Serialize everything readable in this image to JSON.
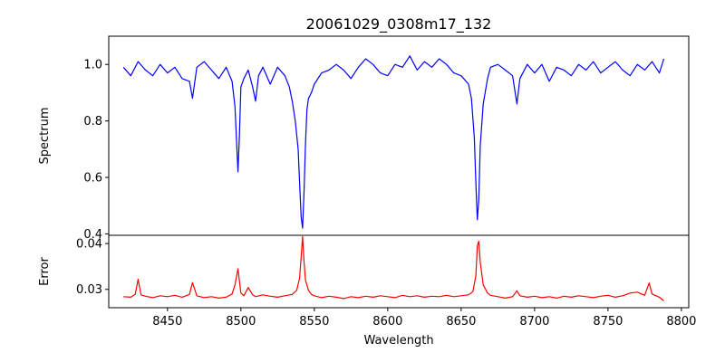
{
  "chart_data": {
    "type": "line",
    "title": "20061029_0308m17_132",
    "xlabel": "Wavelength",
    "x_ticks": [
      8450,
      8500,
      8550,
      8600,
      8650,
      8700,
      8750,
      8800
    ],
    "xlim": [
      8410,
      8805
    ],
    "grid": false,
    "panels": [
      {
        "ylabel": "Spectrum",
        "ylim": [
          0.395,
          1.1
        ],
        "y_ticks": [
          0.4,
          0.6,
          0.8,
          1.0
        ],
        "y_tick_labels": [
          "0.4",
          "0.6",
          "0.8",
          "1.0"
        ],
        "series": [
          {
            "color": "#0000ff",
            "x": [
              8420,
              8425,
              8430,
              8435,
              8440,
              8445,
              8450,
              8455,
              8460,
              8465,
              8467,
              8470,
              8475,
              8480,
              8485,
              8490,
              8494,
              8496,
              8497,
              8498,
              8499,
              8500,
              8502,
              8505,
              8508,
              8510,
              8512,
              8515,
              8520,
              8525,
              8530,
              8533,
              8535,
              8537,
              8539,
              8540,
              8541,
              8542,
              8543,
              8544,
              8545,
              8546,
              8548,
              8550,
              8555,
              8560,
              8565,
              8570,
              8575,
              8580,
              8585,
              8590,
              8595,
              8600,
              8605,
              8610,
              8615,
              8620,
              8625,
              8630,
              8635,
              8640,
              8645,
              8650,
              8655,
              8657,
              8659,
              8660,
              8661,
              8662,
              8663,
              8665,
              8668,
              8670,
              8675,
              8680,
              8685,
              8688,
              8690,
              8695,
              8700,
              8705,
              8710,
              8715,
              8720,
              8725,
              8730,
              8735,
              8740,
              8745,
              8750,
              8755,
              8760,
              8765,
              8770,
              8775,
              8780,
              8785,
              8788
            ],
            "y": [
              0.99,
              0.96,
              1.01,
              0.98,
              0.96,
              1.0,
              0.97,
              0.99,
              0.95,
              0.94,
              0.88,
              0.99,
              1.01,
              0.98,
              0.95,
              0.99,
              0.94,
              0.85,
              0.73,
              0.62,
              0.75,
              0.92,
              0.95,
              0.98,
              0.92,
              0.87,
              0.96,
              0.99,
              0.93,
              0.99,
              0.96,
              0.92,
              0.87,
              0.8,
              0.7,
              0.58,
              0.46,
              0.42,
              0.55,
              0.72,
              0.84,
              0.88,
              0.9,
              0.93,
              0.97,
              0.98,
              1.0,
              0.98,
              0.95,
              0.99,
              1.02,
              1.0,
              0.97,
              0.96,
              1.0,
              0.99,
              1.03,
              0.98,
              1.01,
              0.99,
              1.02,
              1.0,
              0.97,
              0.96,
              0.93,
              0.88,
              0.74,
              0.58,
              0.45,
              0.52,
              0.71,
              0.86,
              0.95,
              0.99,
              1.0,
              0.98,
              0.96,
              0.86,
              0.95,
              1.0,
              0.97,
              1.0,
              0.94,
              0.99,
              0.98,
              0.96,
              1.0,
              0.98,
              1.01,
              0.97,
              0.99,
              1.01,
              0.98,
              0.96,
              1.0,
              0.98,
              1.01,
              0.97,
              1.02
            ]
          }
        ]
      },
      {
        "ylabel": "Error",
        "ylim": [
          0.026,
          0.0418
        ],
        "y_ticks": [
          0.03,
          0.04
        ],
        "y_tick_labels": [
          "0.03",
          "0.04"
        ],
        "series": [
          {
            "color": "#ff0000",
            "x": [
              8420,
              8425,
              8428,
              8430,
              8432,
              8435,
              8440,
              8445,
              8450,
              8455,
              8460,
              8465,
              8467,
              8470,
              8475,
              8480,
              8485,
              8490,
              8494,
              8496,
              8498,
              8500,
              8502,
              8505,
              8508,
              8510,
              8515,
              8520,
              8525,
              8530,
              8535,
              8538,
              8540,
              8541,
              8542,
              8543,
              8544,
              8546,
              8548,
              8550,
              8555,
              8560,
              8565,
              8570,
              8575,
              8580,
              8585,
              8590,
              8595,
              8600,
              8605,
              8610,
              8615,
              8620,
              8625,
              8630,
              8635,
              8640,
              8645,
              8650,
              8655,
              8658,
              8660,
              8661,
              8662,
              8663,
              8665,
              8668,
              8670,
              8675,
              8680,
              8685,
              8688,
              8690,
              8695,
              8700,
              8705,
              8710,
              8715,
              8720,
              8725,
              8730,
              8735,
              8740,
              8745,
              8750,
              8755,
              8760,
              8765,
              8770,
              8775,
              8778,
              8780,
              8785,
              8788
            ],
            "y": [
              0.0284,
              0.0283,
              0.0289,
              0.0322,
              0.0288,
              0.0285,
              0.0282,
              0.0286,
              0.0284,
              0.0287,
              0.0283,
              0.0289,
              0.0315,
              0.0286,
              0.0282,
              0.0284,
              0.0281,
              0.0283,
              0.029,
              0.031,
              0.0345,
              0.0292,
              0.0286,
              0.0304,
              0.0288,
              0.0284,
              0.0288,
              0.0285,
              0.0283,
              0.0286,
              0.0289,
              0.0298,
              0.0325,
              0.037,
              0.0415,
              0.036,
              0.032,
              0.0298,
              0.0289,
              0.0286,
              0.0282,
              0.0285,
              0.0283,
              0.028,
              0.0284,
              0.0282,
              0.0285,
              0.0283,
              0.0286,
              0.0284,
              0.0282,
              0.0287,
              0.0284,
              0.0286,
              0.0283,
              0.0285,
              0.0284,
              0.0287,
              0.0284,
              0.0286,
              0.0288,
              0.0295,
              0.033,
              0.0395,
              0.0405,
              0.036,
              0.031,
              0.0292,
              0.0287,
              0.0284,
              0.0281,
              0.0284,
              0.0297,
              0.0286,
              0.0283,
              0.0285,
              0.0282,
              0.0284,
              0.0281,
              0.0285,
              0.0283,
              0.0286,
              0.0284,
              0.0282,
              0.0285,
              0.0287,
              0.0283,
              0.0286,
              0.0292,
              0.0294,
              0.0287,
              0.0314,
              0.029,
              0.0283,
              0.0275
            ]
          }
        ]
      }
    ]
  }
}
